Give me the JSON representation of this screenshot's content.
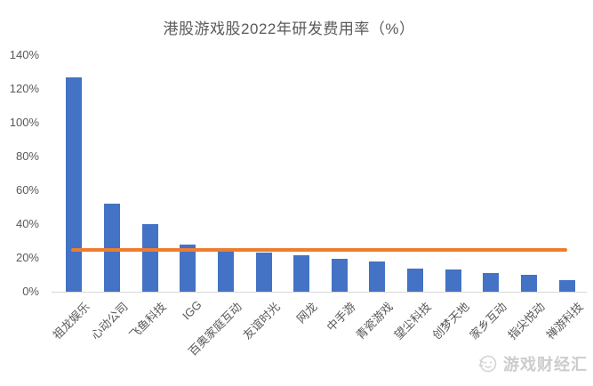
{
  "chart_data": {
    "type": "bar",
    "title": "港股游戏股2022年研发费用率（%）",
    "categories": [
      "祖龙娱乐",
      "心动公司",
      "飞鱼科技",
      "IGG",
      "百奥家庭互动",
      "友谊时光",
      "网龙",
      "中手游",
      "青瓷游戏",
      "望尘科技",
      "创梦天地",
      "家乡互动",
      "指尖悦动",
      "禅游科技"
    ],
    "values": [
      127,
      52,
      40,
      28,
      23.5,
      23,
      21.5,
      19.5,
      18,
      13.5,
      13,
      11,
      10,
      7
    ],
    "unit": "%",
    "xlabel": "",
    "ylabel": "",
    "ylim": [
      0,
      140
    ],
    "ytick_step": 20,
    "ytick_labels": [
      "0%",
      "20%",
      "40%",
      "60%",
      "80%",
      "100%",
      "120%",
      "140%"
    ],
    "grid": false,
    "legend_position": "none",
    "bar_color": "#4472C4",
    "reference_line": {
      "value": 25,
      "color": "#ED7D31",
      "description": "average R&D expense ratio line"
    }
  },
  "watermark": {
    "text": "游戏财经汇",
    "icon": "game-media-logo-icon",
    "color": "#cccccc"
  }
}
